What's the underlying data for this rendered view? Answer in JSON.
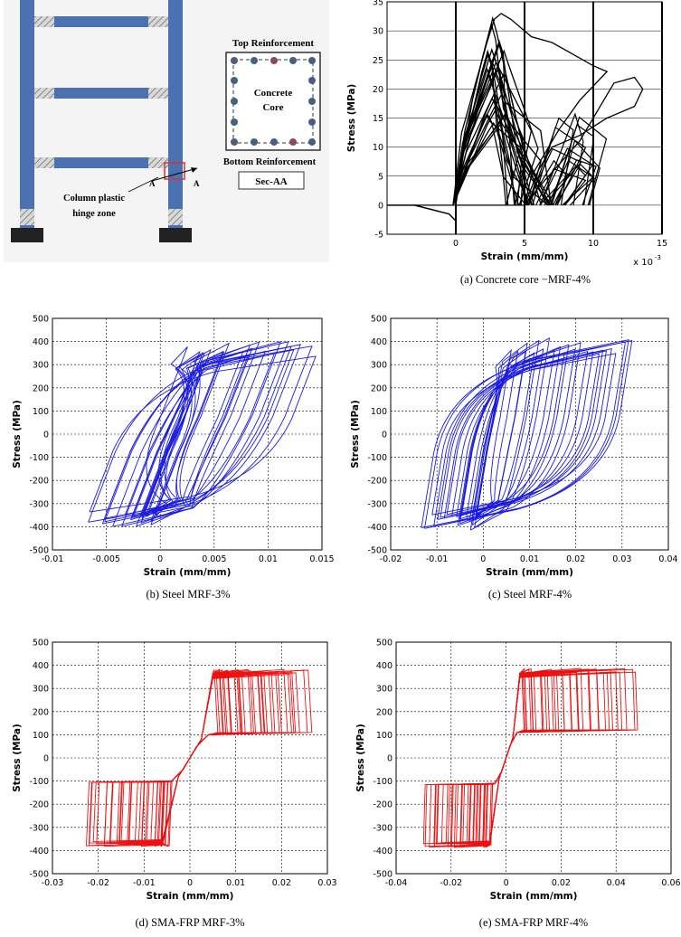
{
  "schematic": {
    "label_top_reinforcement": "Top Reinforcement",
    "label_concrete": "Concrete",
    "label_core": "Core",
    "label_bottom_reinforcement": "Bottom Reinforcement",
    "label_section": "Sec-AA",
    "label_hinge_1": "Column plastic",
    "label_hinge_2": "hinge zone",
    "label_cut_a": "A",
    "colors": {
      "column": "#4a72b0",
      "hinge": "#b8b8b8",
      "base": "#222222",
      "rebar": "#4a5f80",
      "highlight": "#e0302a"
    }
  },
  "chart_data": [
    {
      "id": "a",
      "type": "line",
      "caption": "(a) Concrete core −MRF-4%",
      "xlabel": "Strain (mm/mm)",
      "ylabel": "Stress (MPa)",
      "x_multiplier_label": "x 10",
      "x_multiplier_exp": "-3",
      "xlim": [
        -5,
        15
      ],
      "ylim": [
        -5,
        35
      ],
      "xticks": [
        0,
        5,
        10,
        15
      ],
      "yticks": [
        -5,
        0,
        5,
        10,
        15,
        20,
        25,
        30,
        35
      ],
      "grid": true,
      "color": "#000000",
      "x_units_note": "strain x 10^-3",
      "envelope": [
        [
          -3,
          0
        ],
        [
          0,
          0
        ],
        [
          0.5,
          8
        ],
        [
          1.2,
          18
        ],
        [
          2,
          26
        ],
        [
          2.8,
          32
        ],
        [
          3.3,
          33
        ],
        [
          4,
          32
        ],
        [
          5.5,
          29
        ],
        [
          7,
          28
        ],
        [
          8.5,
          26
        ],
        [
          10,
          24
        ],
        [
          11,
          23
        ],
        [
          9,
          18
        ],
        [
          7.5,
          13
        ],
        [
          6.5,
          9
        ],
        [
          5.5,
          5
        ],
        [
          5,
          0
        ],
        [
          0,
          0
        ]
      ],
      "outer_loop": [
        [
          5,
          0
        ],
        [
          6,
          3
        ],
        [
          7.5,
          7
        ],
        [
          9,
          11
        ],
        [
          10.5,
          17
        ],
        [
          11.5,
          21
        ],
        [
          13,
          22
        ],
        [
          13.6,
          20
        ],
        [
          13,
          17
        ],
        [
          11,
          15
        ],
        [
          9,
          12
        ],
        [
          7,
          10
        ],
        [
          6,
          6
        ],
        [
          5,
          0
        ]
      ]
    },
    {
      "id": "b",
      "type": "line",
      "caption": "(b) Steel MRF-3%",
      "xlabel": "Strain (mm/mm)",
      "ylabel": "Stress (MPa)",
      "xlim": [
        -0.01,
        0.015
      ],
      "ylim": [
        -500,
        500
      ],
      "xticks": [
        -0.01,
        -0.005,
        0,
        0.005,
        0.01,
        0.015
      ],
      "xtick_labels": [
        "-0.01",
        "-0.005",
        "0",
        "0.005",
        "0.01",
        "0.015"
      ],
      "yticks": [
        -500,
        -400,
        -300,
        -200,
        -100,
        0,
        100,
        200,
        300,
        400,
        500
      ],
      "grid": true,
      "color": "#1a1ae0",
      "strain_range": [
        -0.0065,
        0.0145
      ],
      "peak_stress": 410,
      "loops": 22
    },
    {
      "id": "c",
      "type": "line",
      "caption": "(c) Steel MRF-4%",
      "xlabel": "Strain (mm/mm)",
      "ylabel": "Stress (MPa)",
      "xlim": [
        -0.02,
        0.04
      ],
      "ylim": [
        -500,
        500
      ],
      "xticks": [
        -0.02,
        -0.01,
        0,
        0.01,
        0.02,
        0.03,
        0.04
      ],
      "xtick_labels": [
        "-0.02",
        "-0.01",
        "0",
        "0.01",
        "0.02",
        "0.03",
        "0.04"
      ],
      "yticks": [
        -500,
        -400,
        -300,
        -200,
        -100,
        0,
        100,
        200,
        300,
        400,
        500
      ],
      "grid": true,
      "color": "#1a1ae0",
      "strain_range": [
        -0.013,
        0.0325
      ],
      "peak_stress": 420,
      "loops": 24
    },
    {
      "id": "d",
      "type": "line",
      "caption": "(d) SMA-FRP MRF-3%",
      "xlabel": "Strain (mm/mm)",
      "ylabel": "Stress (MPa)",
      "xlim": [
        -0.03,
        0.03
      ],
      "ylim": [
        -500,
        500
      ],
      "xticks": [
        -0.03,
        -0.02,
        -0.01,
        0,
        0.01,
        0.02,
        0.03
      ],
      "xtick_labels": [
        "-0.03",
        "-0.02",
        "-0.01",
        "0",
        "0.01",
        "0.02",
        "0.03"
      ],
      "yticks": [
        -500,
        -400,
        -300,
        -200,
        -100,
        0,
        100,
        200,
        300,
        400,
        500
      ],
      "grid": true,
      "color": "#ee1111",
      "strain_range": [
        -0.023,
        0.025
      ],
      "upper_plateau": 375,
      "lower_plateau": 100
    },
    {
      "id": "e",
      "type": "line",
      "caption": "(e) SMA-FRP MRF-4%",
      "xlabel": "Strain (mm/mm)",
      "ylabel": "Stress (MPa)",
      "xlim": [
        -0.04,
        0.06
      ],
      "ylim": [
        -500,
        500
      ],
      "xticks": [
        -0.04,
        -0.02,
        0,
        0.02,
        0.04,
        0.06
      ],
      "xtick_labels": [
        "-0.04",
        "-0.02",
        "0",
        "0.02",
        "0.04",
        "0.06"
      ],
      "yticks": [
        -500,
        -400,
        -300,
        -200,
        -100,
        0,
        100,
        200,
        300,
        400,
        500
      ],
      "grid": true,
      "color": "#ee1111",
      "strain_range": [
        -0.03,
        0.047
      ],
      "upper_plateau": 380,
      "lower_plateau": 110
    }
  ]
}
